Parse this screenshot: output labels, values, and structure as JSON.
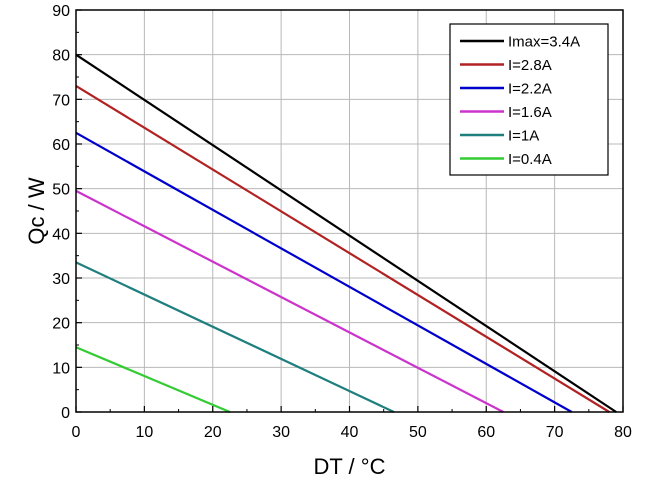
{
  "chart_data": {
    "type": "line",
    "title": "",
    "xlabel": "DT / °C",
    "ylabel": "Qc / W",
    "xlim": [
      0,
      80
    ],
    "ylim": [
      0,
      90
    ],
    "xticks": [
      "0",
      "10",
      "20",
      "30",
      "40",
      "50",
      "60",
      "70",
      "80"
    ],
    "yticks": [
      "0",
      "10",
      "20",
      "30",
      "40",
      "50",
      "60",
      "70",
      "80",
      "90"
    ],
    "grid": true,
    "legend_position": "top-right",
    "series": [
      {
        "name": "Imax=3.4A",
        "color": "#000000",
        "x": [
          0,
          79
        ],
        "y": [
          80,
          0
        ]
      },
      {
        "name": "I=2.8A",
        "color": "#b22222",
        "x": [
          0,
          78
        ],
        "y": [
          73,
          0
        ]
      },
      {
        "name": "I=2.2A",
        "color": "#0000cc",
        "x": [
          0,
          72.5
        ],
        "y": [
          62.5,
          0
        ]
      },
      {
        "name": "I=1.6A",
        "color": "#cc33cc",
        "x": [
          0,
          62.5
        ],
        "y": [
          49.5,
          0
        ]
      },
      {
        "name": "I=1A",
        "color": "#1f7f7f",
        "x": [
          0,
          46.5
        ],
        "y": [
          33.5,
          0
        ]
      },
      {
        "name": "I=0.4A",
        "color": "#33cc33",
        "x": [
          0,
          22.5
        ],
        "y": [
          14.5,
          0
        ]
      }
    ]
  }
}
